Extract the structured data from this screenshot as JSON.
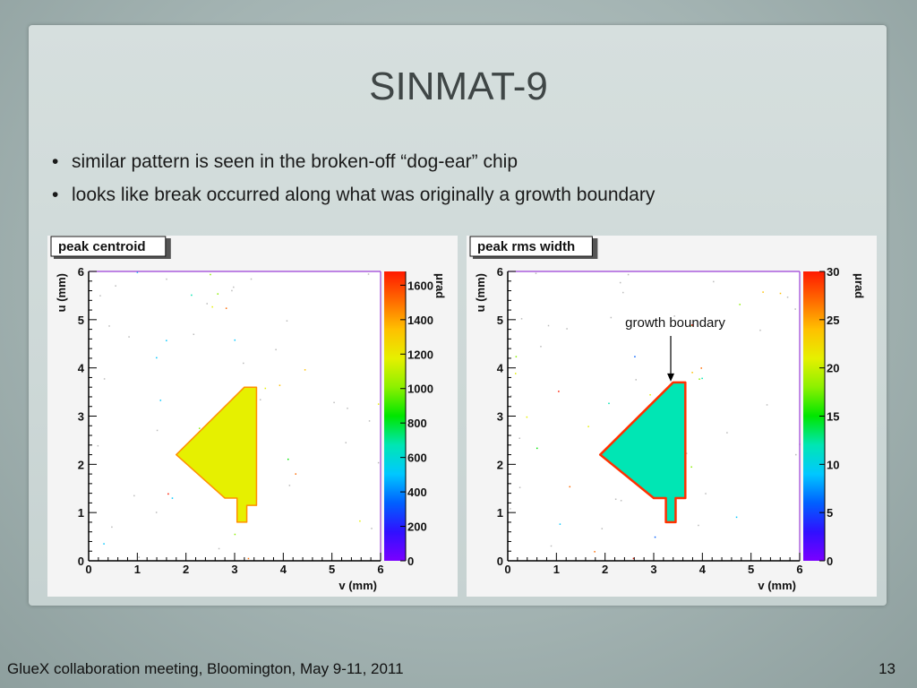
{
  "slide": {
    "title": "SINMAT-9",
    "bullets": [
      "similar pattern is seen in the broken-off “dog-ear” chip",
      "looks like break occurred along what was originally a growth boundary"
    ],
    "footer_left": "GlueX collaboration meeting, Bloomington, May 9-11, 2011",
    "page_number": "13"
  },
  "colors": {
    "frame_purple": "#9b3fd6",
    "colormap": [
      "#7a00ff",
      "#3010ff",
      "#0060ff",
      "#00c8ff",
      "#00e6b4",
      "#00e600",
      "#8cf000",
      "#e6f000",
      "#ffc000",
      "#ff6a00",
      "#ff1a00"
    ]
  },
  "chart_data": [
    {
      "type": "heatmap",
      "title": "peak centroid",
      "xlabel": "v (mm)",
      "ylabel": "u (mm)",
      "xlim": [
        0,
        6
      ],
      "ylim": [
        0,
        6
      ],
      "x_ticks": [
        "0",
        "1",
        "2",
        "3",
        "4",
        "5",
        "6"
      ],
      "y_ticks": [
        "0",
        "1",
        "2",
        "3",
        "4",
        "5",
        "6"
      ],
      "colorbar": {
        "label": "μrad",
        "range": [
          0,
          1680
        ],
        "ticks": [
          "0",
          "200",
          "400",
          "600",
          "800",
          "1000",
          "1200",
          "1400",
          "1600"
        ]
      },
      "annotation": "",
      "region_shape": [
        [
          3.45,
          3.6
        ],
        [
          3.2,
          3.6
        ],
        [
          1.8,
          2.2
        ],
        [
          2.8,
          1.3
        ],
        [
          3.05,
          1.3
        ],
        [
          3.05,
          0.8
        ],
        [
          3.25,
          0.8
        ],
        [
          3.25,
          1.15
        ],
        [
          3.45,
          1.15
        ]
      ],
      "region_typical_value": 1250
    },
    {
      "type": "heatmap",
      "title": "peak rms width",
      "xlabel": "v (mm)",
      "ylabel": "u (mm)",
      "xlim": [
        0,
        6
      ],
      "ylim": [
        0,
        6
      ],
      "x_ticks": [
        "0",
        "1",
        "2",
        "3",
        "4",
        "5",
        "6"
      ],
      "y_ticks": [
        "0",
        "1",
        "2",
        "3",
        "4",
        "5",
        "6"
      ],
      "colorbar": {
        "label": "μrad",
        "range": [
          0,
          30
        ],
        "ticks": [
          "0",
          "5",
          "10",
          "15",
          "20",
          "25",
          "30"
        ]
      },
      "annotation": "growth boundary",
      "annotation_arrow_target": [
        3.35,
        3.7
      ],
      "region_shape": [
        [
          3.65,
          3.7
        ],
        [
          3.4,
          3.7
        ],
        [
          1.9,
          2.2
        ],
        [
          3.0,
          1.3
        ],
        [
          3.25,
          1.3
        ],
        [
          3.25,
          0.8
        ],
        [
          3.45,
          0.8
        ],
        [
          3.45,
          1.3
        ],
        [
          3.65,
          1.3
        ]
      ],
      "region_typical_value": 11
    }
  ]
}
